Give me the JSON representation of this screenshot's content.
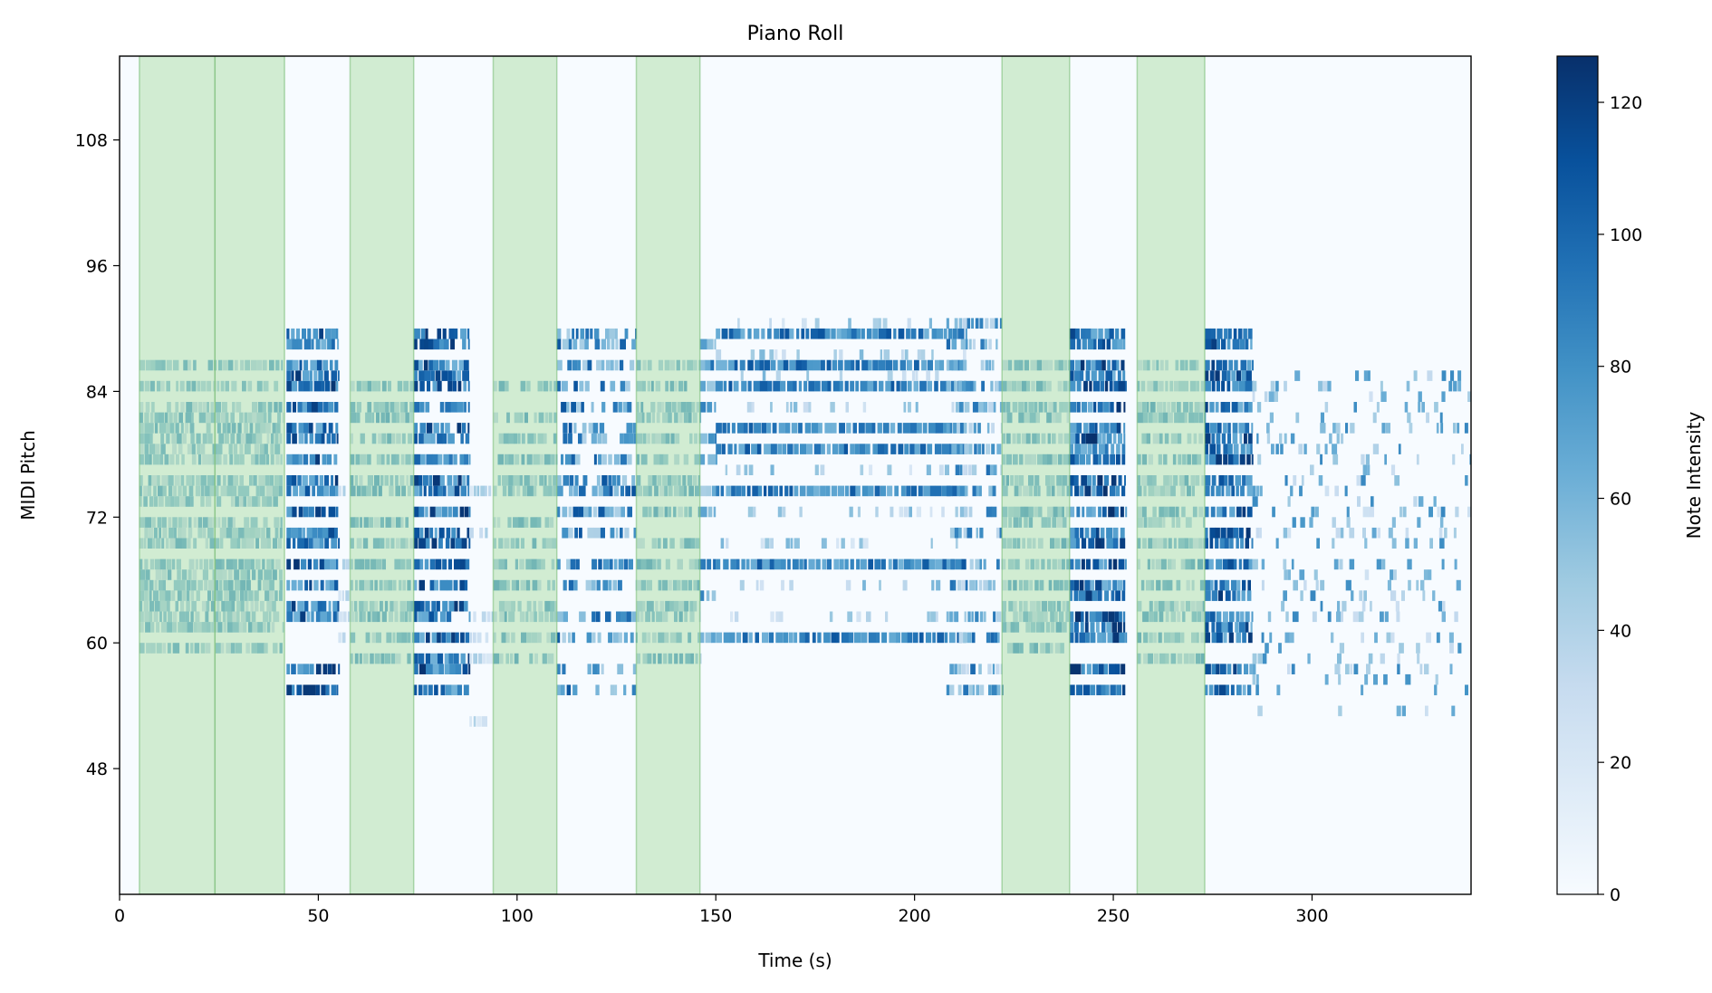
{
  "chart_data": {
    "type": "heatmap",
    "title": "Piano Roll",
    "xlabel": "Time (s)",
    "ylabel": "MIDI Pitch",
    "xlim": [
      0,
      340
    ],
    "ylim": [
      36,
      116
    ],
    "x_ticks": [
      0,
      50,
      100,
      150,
      200,
      250,
      300
    ],
    "y_ticks": [
      48,
      60,
      72,
      84,
      96,
      108
    ],
    "colormap": "Blues",
    "background_color": "#f7fbff",
    "colorbar": {
      "label": "Note Intensity",
      "range": [
        0,
        127
      ],
      "ticks": [
        0,
        20,
        40,
        60,
        80,
        100,
        120
      ]
    },
    "highlight_color": "#a1d99b",
    "highlighted_spans": [
      [
        5,
        24
      ],
      [
        24,
        41.5
      ],
      [
        58,
        74
      ],
      [
        94,
        110
      ],
      [
        130,
        146
      ],
      [
        222,
        239
      ],
      [
        256,
        273
      ]
    ],
    "note_blocks": [
      {
        "t0": 5,
        "t1": 41,
        "pitches": [
          59,
          61,
          62,
          63,
          64,
          65,
          66,
          67,
          69,
          70,
          71,
          73,
          74,
          75,
          77,
          78,
          79,
          80,
          81,
          82,
          84,
          86
        ],
        "vmin": 30,
        "vmax": 75,
        "density": 0.28,
        "dur": 1.2
      },
      {
        "t0": 42,
        "t1": 55,
        "pitches": [
          55,
          57,
          62,
          63,
          65,
          67,
          69,
          70,
          72,
          74,
          75,
          77,
          79,
          80,
          82,
          84,
          85,
          86,
          88,
          89
        ],
        "vmin": 60,
        "vmax": 125,
        "density": 0.32,
        "dur": 1.3
      },
      {
        "t0": 55,
        "t1": 58,
        "pitches": [
          60,
          62,
          64,
          67,
          74
        ],
        "vmin": 15,
        "vmax": 45,
        "density": 0.25,
        "dur": 1
      },
      {
        "t0": 58,
        "t1": 74,
        "pitches": [
          58,
          60,
          62,
          63,
          65,
          67,
          69,
          71,
          74,
          75,
          77,
          79,
          81,
          82,
          84
        ],
        "vmin": 30,
        "vmax": 80,
        "density": 0.28,
        "dur": 1.2
      },
      {
        "t0": 74,
        "t1": 88,
        "pitches": [
          55,
          57,
          58,
          60,
          62,
          63,
          65,
          67,
          69,
          70,
          72,
          74,
          75,
          77,
          79,
          80,
          82,
          84,
          85,
          86,
          88,
          89
        ],
        "vmin": 60,
        "vmax": 125,
        "density": 0.3,
        "dur": 1.3
      },
      {
        "t0": 88,
        "t1": 94,
        "pitches": [
          52,
          58,
          60,
          62,
          70,
          74
        ],
        "vmin": 15,
        "vmax": 50,
        "density": 0.2,
        "dur": 1
      },
      {
        "t0": 94,
        "t1": 110,
        "pitches": [
          58,
          60,
          62,
          63,
          65,
          67,
          69,
          71,
          74,
          75,
          77,
          79,
          81,
          84
        ],
        "vmin": 30,
        "vmax": 80,
        "density": 0.26,
        "dur": 1.2
      },
      {
        "t0": 110,
        "t1": 130,
        "pitches": [
          55,
          57,
          60,
          62,
          65,
          67,
          70,
          72,
          74,
          75,
          77,
          79,
          80,
          82,
          84,
          86,
          88,
          89
        ],
        "vmin": 40,
        "vmax": 110,
        "density": 0.22,
        "dur": 1.2
      },
      {
        "t0": 130,
        "t1": 146,
        "pitches": [
          58,
          60,
          62,
          63,
          65,
          67,
          69,
          72,
          74,
          75,
          77,
          79,
          81,
          82,
          84,
          86
        ],
        "vmin": 30,
        "vmax": 80,
        "density": 0.28,
        "dur": 1.2
      },
      {
        "t0": 146,
        "t1": 150,
        "pitches": [
          60,
          64,
          67,
          72,
          74,
          77,
          79,
          82,
          84,
          86,
          88
        ],
        "vmin": 40,
        "vmax": 100,
        "density": 0.4,
        "dur": 1.5
      },
      {
        "t0": 150,
        "t1": 213,
        "pitches": [
          60,
          67,
          74,
          78,
          80,
          84,
          86,
          89
        ],
        "vmin": 60,
        "vmax": 110,
        "density": 0.45,
        "dur": 1.4
      },
      {
        "t0": 150,
        "t1": 213,
        "pitches": [
          62,
          65,
          69,
          72,
          76,
          82,
          85,
          87,
          90
        ],
        "vmin": 20,
        "vmax": 60,
        "density": 0.08,
        "dur": 1
      },
      {
        "t0": 208,
        "t1": 222,
        "pitches": [
          55,
          57,
          60,
          62,
          65,
          67,
          70,
          72,
          74,
          76,
          78,
          80,
          82,
          84,
          86,
          88,
          90
        ],
        "vmin": 30,
        "vmax": 100,
        "density": 0.22,
        "dur": 1
      },
      {
        "t0": 222,
        "t1": 239,
        "pitches": [
          59,
          61,
          62,
          63,
          65,
          67,
          69,
          71,
          72,
          74,
          75,
          77,
          79,
          81,
          82,
          84,
          86
        ],
        "vmin": 30,
        "vmax": 80,
        "density": 0.28,
        "dur": 1.2
      },
      {
        "t0": 239,
        "t1": 253,
        "pitches": [
          55,
          57,
          60,
          61,
          62,
          64,
          65,
          67,
          69,
          70,
          72,
          74,
          75,
          77,
          78,
          79,
          80,
          82,
          84,
          85,
          86,
          88,
          89
        ],
        "vmin": 60,
        "vmax": 127,
        "density": 0.32,
        "dur": 1.3
      },
      {
        "t0": 256,
        "t1": 273,
        "pitches": [
          58,
          60,
          62,
          63,
          65,
          67,
          69,
          71,
          72,
          74,
          75,
          77,
          79,
          81,
          82,
          84,
          86
        ],
        "vmin": 30,
        "vmax": 80,
        "density": 0.28,
        "dur": 1.2
      },
      {
        "t0": 273,
        "t1": 285,
        "pitches": [
          55,
          57,
          60,
          61,
          62,
          64,
          65,
          67,
          69,
          70,
          72,
          74,
          75,
          77,
          78,
          79,
          80,
          82,
          84,
          85,
          86,
          88,
          89
        ],
        "vmin": 60,
        "vmax": 125,
        "density": 0.32,
        "dur": 1.3
      },
      {
        "t0": 285,
        "t1": 340,
        "pitches": [
          53,
          55,
          56,
          57,
          58,
          59,
          60,
          62,
          63,
          64,
          65,
          66,
          67,
          69,
          70,
          71,
          72,
          73,
          74,
          75,
          76,
          77,
          78,
          79,
          80,
          81,
          82,
          83,
          84,
          85
        ],
        "vmin": 25,
        "vmax": 85,
        "density": 0.06,
        "dur": 1
      }
    ]
  }
}
